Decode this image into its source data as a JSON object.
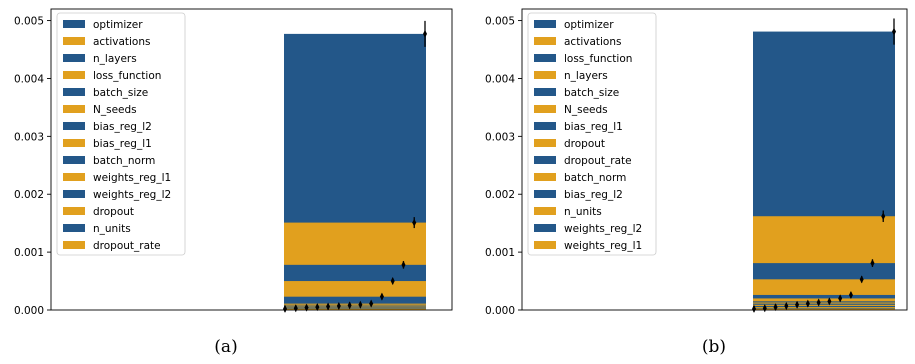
{
  "colors": {
    "blue": "#235789",
    "gold": "#E1A01E",
    "errorbar": "#000000"
  },
  "chart_data": [
    {
      "type": "bar",
      "caption": "(a)",
      "ylim": [
        0,
        0.0052
      ],
      "yticks": [
        "0.000",
        "0.001",
        "0.002",
        "0.003",
        "0.004",
        "0.005"
      ],
      "ytick_values": [
        0,
        0.001,
        0.002,
        0.003,
        0.004,
        0.005
      ],
      "legend_position": "upper-left",
      "series": [
        {
          "name": "optimizer",
          "value": 0.00477,
          "color": "blue"
        },
        {
          "name": "activations",
          "value": 0.00151,
          "color": "gold"
        },
        {
          "name": "n_layers",
          "value": 0.00078,
          "color": "blue"
        },
        {
          "name": "loss_function",
          "value": 0.0005,
          "color": "gold"
        },
        {
          "name": "batch_size",
          "value": 0.00023,
          "color": "blue"
        },
        {
          "name": "N_seeds",
          "value": 0.00011,
          "color": "gold"
        },
        {
          "name": "bias_reg_l2",
          "value": 9e-05,
          "color": "blue"
        },
        {
          "name": "bias_reg_l1",
          "value": 8e-05,
          "color": "gold"
        },
        {
          "name": "batch_norm",
          "value": 7e-05,
          "color": "blue"
        },
        {
          "name": "weights_reg_l1",
          "value": 6e-05,
          "color": "gold"
        },
        {
          "name": "weights_reg_l2",
          "value": 5e-05,
          "color": "blue"
        },
        {
          "name": "dropout",
          "value": 4e-05,
          "color": "gold"
        },
        {
          "name": "n_units",
          "value": 3e-05,
          "color": "blue"
        },
        {
          "name": "dropout_rate",
          "value": 2e-05,
          "color": "gold"
        }
      ]
    },
    {
      "type": "bar",
      "caption": "(b)",
      "ylim": [
        0,
        0.0052
      ],
      "yticks": [
        "0.000",
        "0.001",
        "0.002",
        "0.003",
        "0.004",
        "0.005"
      ],
      "ytick_values": [
        0,
        0.001,
        0.002,
        0.003,
        0.004,
        0.005
      ],
      "legend_position": "upper-left",
      "series": [
        {
          "name": "optimizer",
          "value": 0.00481,
          "color": "blue"
        },
        {
          "name": "activations",
          "value": 0.00162,
          "color": "gold"
        },
        {
          "name": "loss_function",
          "value": 0.00081,
          "color": "blue"
        },
        {
          "name": "n_layers",
          "value": 0.00053,
          "color": "gold"
        },
        {
          "name": "batch_size",
          "value": 0.00026,
          "color": "blue"
        },
        {
          "name": "N_seeds",
          "value": 0.0002,
          "color": "gold"
        },
        {
          "name": "bias_reg_l1",
          "value": 0.00015,
          "color": "blue"
        },
        {
          "name": "dropout",
          "value": 0.00013,
          "color": "gold"
        },
        {
          "name": "dropout_rate",
          "value": 0.00011,
          "color": "blue"
        },
        {
          "name": "batch_norm",
          "value": 9e-05,
          "color": "gold"
        },
        {
          "name": "bias_reg_l2",
          "value": 7e-05,
          "color": "blue"
        },
        {
          "name": "n_units",
          "value": 5e-05,
          "color": "gold"
        },
        {
          "name": "weights_reg_l2",
          "value": 3e-05,
          "color": "blue"
        },
        {
          "name": "weights_reg_l1",
          "value": 2e-05,
          "color": "gold"
        }
      ]
    }
  ]
}
